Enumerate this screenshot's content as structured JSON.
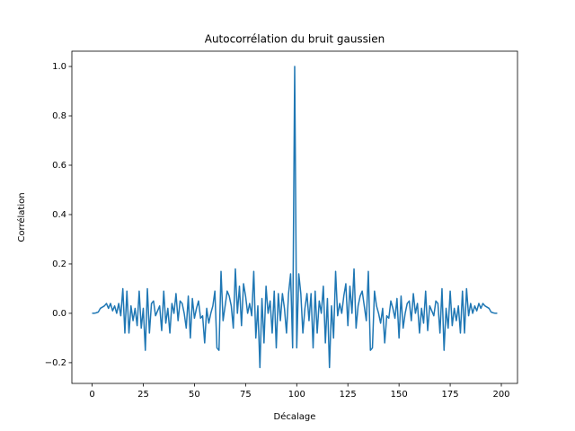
{
  "chart_data": {
    "type": "line",
    "title": "Autocorrélation du bruit gaussien",
    "x_label": "Décalage",
    "y_label": "Corrélation",
    "x": [
      0,
      1,
      2,
      3,
      4,
      5,
      6,
      7,
      8,
      9,
      10,
      11,
      12,
      13,
      14,
      15,
      16,
      17,
      18,
      19,
      20,
      21,
      22,
      23,
      24,
      25,
      26,
      27,
      28,
      29,
      30,
      31,
      32,
      33,
      34,
      35,
      36,
      37,
      38,
      39,
      40,
      41,
      42,
      43,
      44,
      45,
      46,
      47,
      48,
      49,
      50,
      51,
      52,
      53,
      54,
      55,
      56,
      57,
      58,
      59,
      60,
      61,
      62,
      63,
      64,
      65,
      66,
      67,
      68,
      69,
      70,
      71,
      72,
      73,
      74,
      75,
      76,
      77,
      78,
      79,
      80,
      81,
      82,
      83,
      84,
      85,
      86,
      87,
      88,
      89,
      90,
      91,
      92,
      93,
      94,
      95,
      96,
      97,
      98,
      99,
      100,
      101,
      102,
      103,
      104,
      105,
      106,
      107,
      108,
      109,
      110,
      111,
      112,
      113,
      114,
      115,
      116,
      117,
      118,
      119,
      120,
      121,
      122,
      123,
      124,
      125,
      126,
      127,
      128,
      129,
      130,
      131,
      132,
      133,
      134,
      135,
      136,
      137,
      138,
      139,
      140,
      141,
      142,
      143,
      144,
      145,
      146,
      147,
      148,
      149,
      150,
      151,
      152,
      153,
      154,
      155,
      156,
      157,
      158,
      159,
      160,
      161,
      162,
      163,
      164,
      165,
      166,
      167,
      168,
      169,
      170,
      171,
      172,
      173,
      174,
      175,
      176,
      177,
      178,
      179,
      180,
      181,
      182,
      183,
      184,
      185,
      186,
      187,
      188,
      189,
      190,
      191,
      192,
      193,
      194,
      195,
      196,
      197,
      198
    ],
    "series": [
      {
        "color": "#1f77b4",
        "values": [
          0,
          0,
          0.002,
          0.005,
          0.02,
          0.025,
          0.03,
          0.04,
          0.02,
          0.04,
          0.01,
          0.03,
          0,
          0.04,
          -0.01,
          0.1,
          -0.08,
          0.09,
          -0.08,
          0.03,
          -0.03,
          0.02,
          -0.05,
          0.09,
          -0.06,
          0.02,
          -0.15,
          0.1,
          -0.08,
          0.04,
          0.05,
          -0.01,
          0.01,
          0.03,
          -0.07,
          0.09,
          -0.04,
          0.02,
          -0.08,
          0.04,
          0,
          0.08,
          -0.03,
          0.05,
          0.04,
          0,
          -0.06,
          0.07,
          -0.1,
          0.06,
          -0.02,
          0.02,
          0.05,
          -0.02,
          -0.01,
          -0.12,
          0.02,
          -0.04,
          0,
          0.03,
          0.09,
          -0.14,
          -0.15,
          0.17,
          -0.03,
          0.03,
          0.09,
          0.07,
          0.03,
          -0.06,
          0.18,
          0,
          0.11,
          -0.05,
          0.12,
          0.07,
          0,
          0.04,
          -0.01,
          0.17,
          -0.1,
          0.03,
          -0.22,
          0.06,
          -0.12,
          0.11,
          0,
          0.05,
          -0.08,
          0.09,
          -0.14,
          0.08,
          -0.03,
          0.08,
          0.02,
          -0.08,
          0.08,
          0.16,
          -0.14,
          1.0,
          -0.14,
          0.16,
          0.08,
          -0.08,
          0.02,
          0.08,
          -0.03,
          0.08,
          -0.14,
          0.09,
          -0.08,
          0.05,
          0,
          0.11,
          -0.12,
          0.06,
          -0.22,
          0.03,
          -0.1,
          0.17,
          -0.01,
          0.04,
          0,
          0.07,
          0.12,
          -0.05,
          0.11,
          0,
          0.18,
          -0.06,
          0.03,
          0.07,
          0.09,
          0.03,
          -0.03,
          0.17,
          -0.15,
          -0.14,
          0.09,
          0.03,
          0,
          -0.04,
          0.02,
          -0.12,
          -0.01,
          -0.02,
          0.05,
          0.02,
          -0.02,
          0.06,
          -0.1,
          0.07,
          -0.06,
          0,
          0.04,
          0.05,
          -0.03,
          0.08,
          0,
          0.04,
          -0.08,
          0.02,
          -0.04,
          0.09,
          -0.07,
          0.03,
          0.01,
          -0.01,
          0.05,
          0.04,
          -0.08,
          0.1,
          -0.15,
          0.02,
          -0.06,
          0.09,
          -0.05,
          0.02,
          -0.03,
          0.03,
          -0.08,
          0.09,
          -0.08,
          0.1,
          -0.01,
          0.04,
          0,
          0.03,
          0.01,
          0.04,
          0.02,
          0.04,
          0.03,
          0.025,
          0.02,
          0.005,
          0.002,
          0,
          0
        ]
      }
    ],
    "xlim": [
      -9.9,
      207.9
    ],
    "ylim": [
      -0.284,
      1.062
    ],
    "xticks": [
      0,
      25,
      50,
      75,
      100,
      125,
      150,
      175,
      200
    ],
    "yticks": [
      {
        "value": -0.2,
        "label": "−0.2"
      },
      {
        "value": 0,
        "label": "0.0"
      },
      0.2,
      0.4,
      0.6,
      0.8,
      {
        "value": 1,
        "label": "1.0"
      }
    ],
    "grid": false
  }
}
